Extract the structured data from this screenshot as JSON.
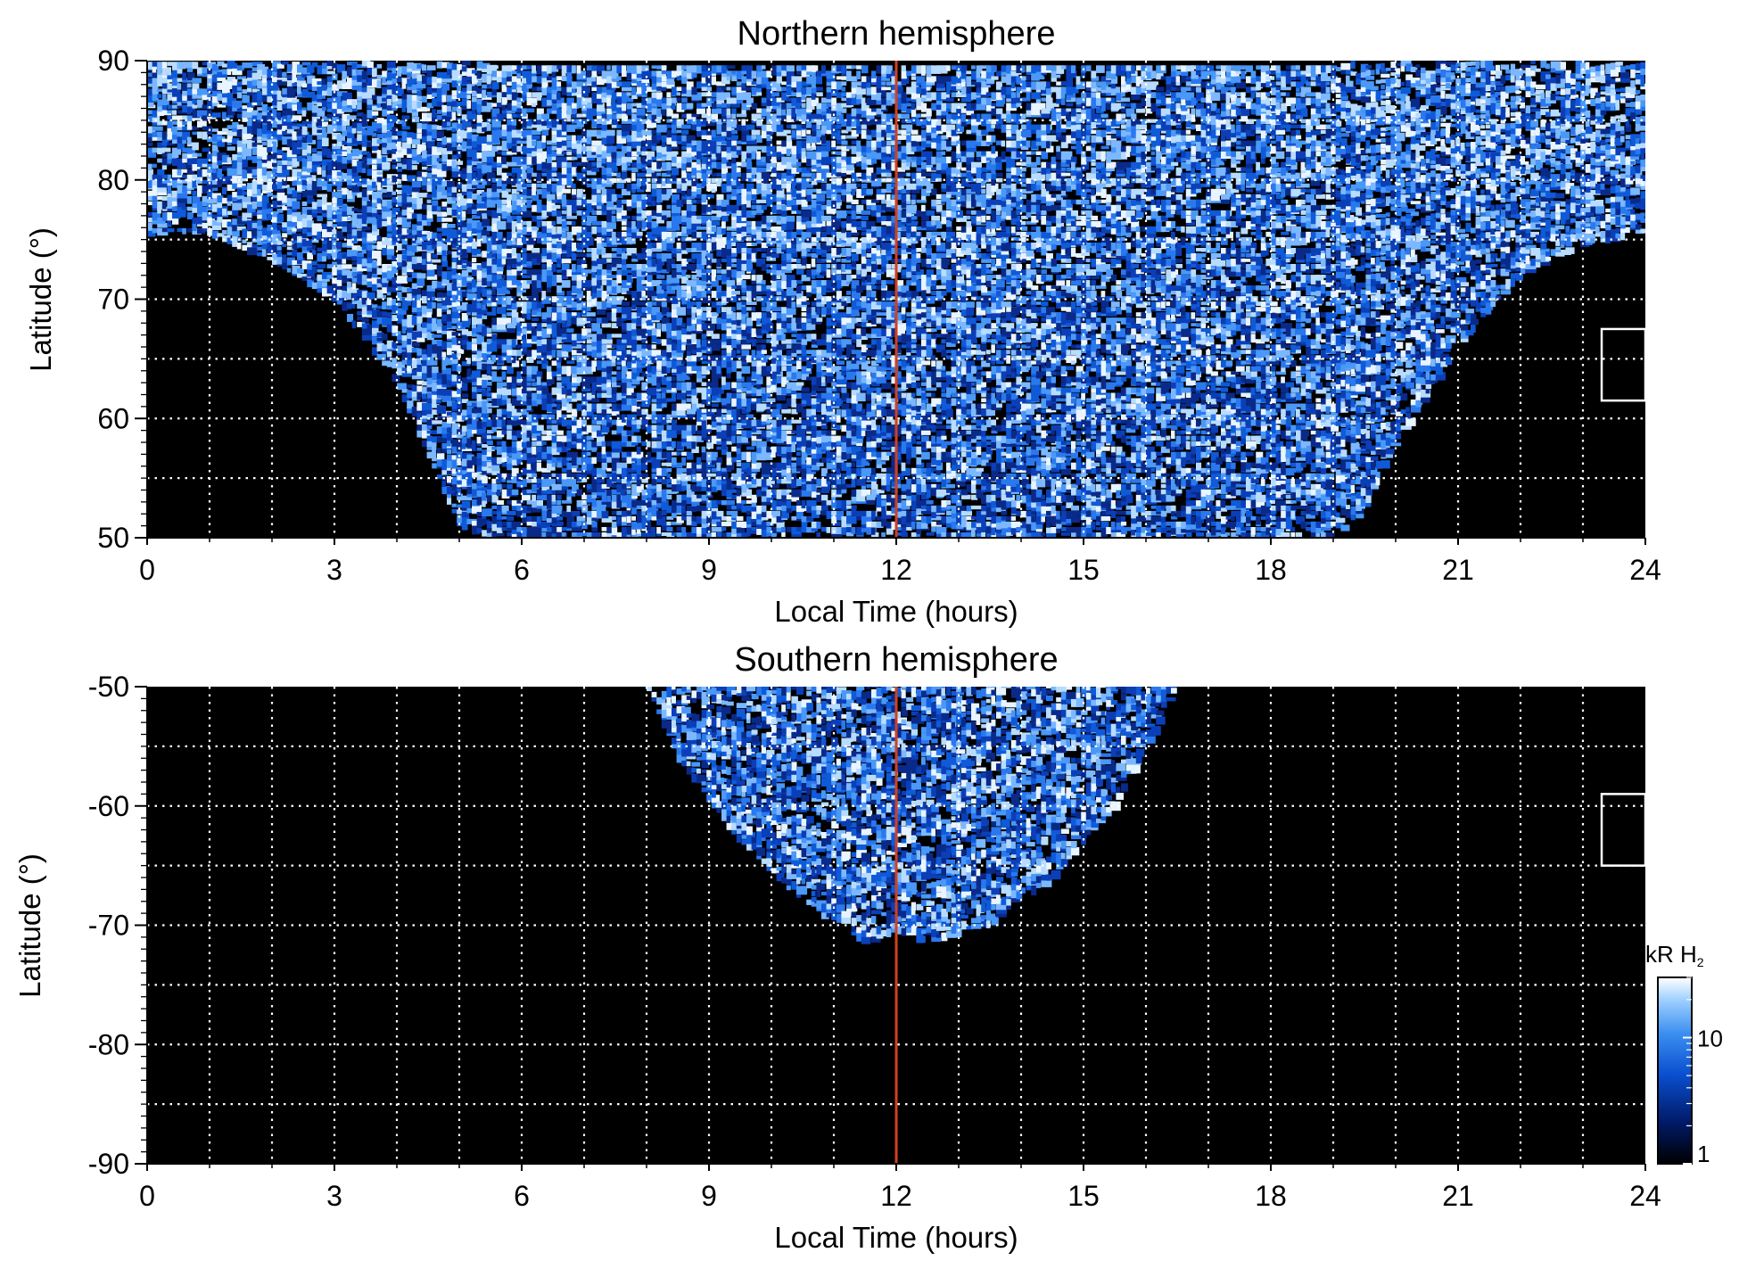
{
  "chart_data": [
    {
      "type": "heatmap",
      "title": "Northern hemisphere",
      "xlabel": "Local Time (hours)",
      "ylabel": "Latitude (°)",
      "xlim": [
        0,
        24
      ],
      "ylim": [
        50,
        90
      ],
      "x_ticks": [
        0,
        3,
        6,
        9,
        12,
        15,
        18,
        21,
        24
      ],
      "x_tick_labels": [
        "0",
        "3",
        "6",
        "9",
        "12",
        "15",
        "18",
        "21",
        "24"
      ],
      "y_ticks": [
        50,
        60,
        70,
        80,
        90
      ],
      "y_tick_labels": [
        "50",
        "60",
        "70",
        "80",
        "90"
      ],
      "grid": true,
      "grid_x_step_hours": 1,
      "grid_y_step_deg": 5,
      "marker_line_x": 12,
      "marker_line_color": "#d2401e",
      "coverage_lower_limit_deg": [
        [
          0,
          75.5
        ],
        [
          1,
          75.5
        ],
        [
          2,
          73
        ],
        [
          3,
          70
        ],
        [
          4,
          63
        ],
        [
          5,
          51
        ],
        [
          5.5,
          50
        ],
        [
          19,
          50
        ],
        [
          19.5,
          52
        ],
        [
          20,
          58
        ],
        [
          21,
          66
        ],
        [
          22,
          72
        ],
        [
          23,
          74.5
        ],
        [
          24,
          75.5
        ]
      ],
      "inset_box": {
        "x": [
          23.3,
          24
        ],
        "y": [
          61.5,
          67.5
        ]
      },
      "colormap": [
        "#000000",
        "#001a66",
        "#0a4fd0",
        "#3b8ff0",
        "#9fd0ff",
        "#ffffff"
      ]
    },
    {
      "type": "heatmap",
      "title": "Southern hemisphere",
      "xlabel": "Local Time (hours)",
      "ylabel": "Latitude (°)",
      "xlim": [
        0,
        24
      ],
      "ylim": [
        -90,
        -50
      ],
      "x_ticks": [
        0,
        3,
        6,
        9,
        12,
        15,
        18,
        21,
        24
      ],
      "x_tick_labels": [
        "0",
        "3",
        "6",
        "9",
        "12",
        "15",
        "18",
        "21",
        "24"
      ],
      "y_ticks": [
        -90,
        -80,
        -70,
        -60,
        -50
      ],
      "y_tick_labels": [
        "-90",
        "-80",
        "-70",
        "-60",
        "-50"
      ],
      "grid": true,
      "grid_x_step_hours": 1,
      "grid_y_step_deg": 5,
      "marker_line_x": 12,
      "marker_line_color": "#d2401e",
      "coverage_upper_limit_deg": [
        [
          8,
          -50
        ],
        [
          8.5,
          -56
        ],
        [
          9.5,
          -63
        ],
        [
          10.5,
          -68
        ],
        [
          11.5,
          -71.5
        ],
        [
          12,
          -70.5
        ],
        [
          12.5,
          -71.5
        ],
        [
          13.5,
          -70
        ],
        [
          14.5,
          -66
        ],
        [
          15.5,
          -60
        ],
        [
          16.5,
          -50
        ]
      ],
      "inset_box": {
        "x": [
          23.3,
          24
        ],
        "y": [
          -65,
          -59
        ]
      },
      "colorbar": {
        "label": "kR H",
        "label_subscript": "2",
        "scale": "log",
        "range": [
          1,
          30
        ],
        "tick_values": [
          1,
          10
        ],
        "tick_labels": [
          "1",
          "10"
        ]
      },
      "colormap": [
        "#000000",
        "#001a66",
        "#0a4fd0",
        "#3b8ff0",
        "#9fd0ff",
        "#ffffff"
      ]
    }
  ]
}
